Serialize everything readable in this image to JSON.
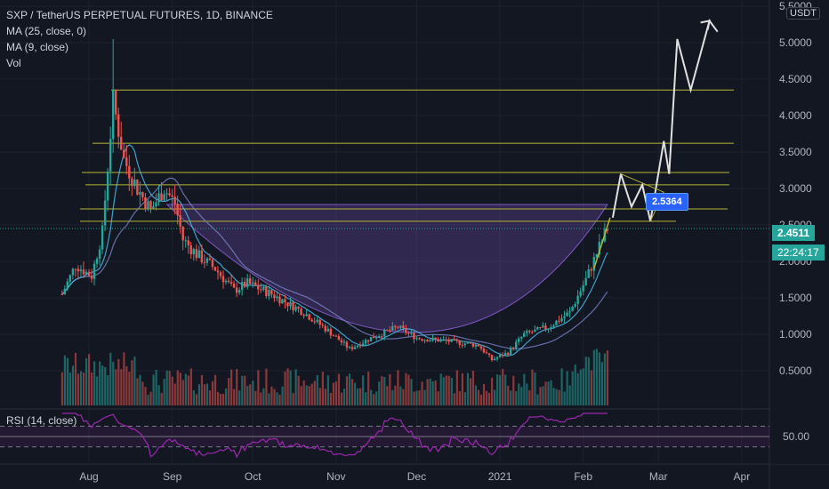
{
  "title": "SXP / TetherUS PERPETUAL FUTURES, 1D, BINANCE",
  "indicators": [
    "MA (25, close, 0)",
    "MA (9, close)",
    "Vol"
  ],
  "rsi_label": "RSI (14, close)",
  "unit": "USDT",
  "last_price": "2.4511",
  "countdown": "22:24:17",
  "annotation_label": "2.5364",
  "colors": {
    "bg": "#131722",
    "up": "#26a69a",
    "down": "#ef5350",
    "level": "#b5b536",
    "bowl": "#7e57c2",
    "rsi": "#9c27b0",
    "path": "#e0e0e0",
    "ma25": "#7986cb",
    "ma9": "#4fc3f7"
  },
  "chart_data": {
    "type": "candlestick",
    "symbol": "SXP/USDT",
    "timeframe": "1D",
    "x_ticks": [
      "Aug",
      "Sep",
      "Oct",
      "Nov",
      "Dec",
      "2021",
      "Feb",
      "Mar",
      "Apr"
    ],
    "y_ticks": [
      0.5,
      1.0,
      1.5,
      2.0,
      2.5,
      3.0,
      3.5,
      4.0,
      4.5,
      5.0,
      5.5
    ],
    "y_tick_labels": [
      "0.5000",
      "1.0000",
      "1.5000",
      "2.0000",
      "2.5000",
      "3.0000",
      "3.5000",
      "4.0000",
      "4.5000",
      "5.0000",
      "5.5000"
    ],
    "y_range": [
      0.2,
      5.55
    ],
    "price_anchors": [
      [
        "2020-07-22",
        1.55
      ],
      [
        "2020-07-27",
        1.95
      ],
      [
        "2020-08-02",
        1.8
      ],
      [
        "2020-08-06",
        2.4
      ],
      [
        "2020-08-10",
        4.2
      ],
      [
        "2020-08-14",
        3.4
      ],
      [
        "2020-08-19",
        3.0
      ],
      [
        "2020-08-24",
        2.7
      ],
      [
        "2020-08-29",
        3.0
      ],
      [
        "2020-09-02",
        2.8
      ],
      [
        "2020-09-05",
        2.3
      ],
      [
        "2020-09-10",
        2.1
      ],
      [
        "2020-09-17",
        1.9
      ],
      [
        "2020-09-24",
        1.6
      ],
      [
        "2020-09-29",
        1.7
      ],
      [
        "2020-10-08",
        1.55
      ],
      [
        "2020-10-20",
        1.3
      ],
      [
        "2020-10-29",
        1.05
      ],
      [
        "2020-11-06",
        0.8
      ],
      [
        "2020-11-14",
        0.95
      ],
      [
        "2020-11-24",
        1.1
      ],
      [
        "2020-12-01",
        0.95
      ],
      [
        "2020-12-14",
        0.9
      ],
      [
        "2020-12-24",
        0.85
      ],
      [
        "2020-12-29",
        0.65
      ],
      [
        "2021-01-04",
        0.75
      ],
      [
        "2021-01-10",
        1.0
      ],
      [
        "2021-01-19",
        1.1
      ],
      [
        "2021-01-27",
        1.3
      ],
      [
        "2021-02-02",
        1.75
      ],
      [
        "2021-02-07",
        2.2
      ],
      [
        "2021-02-10",
        2.45
      ]
    ],
    "resistance_levels": [
      4.35,
      3.62,
      3.22,
      3.05,
      2.72,
      2.55
    ],
    "rsi_levels": [
      70,
      50,
      30
    ],
    "rsi_value_label": "50.00",
    "projection_path": [
      [
        "2021-02-12",
        2.6
      ],
      [
        "2021-02-15",
        3.2
      ],
      [
        "2021-02-19",
        2.75
      ],
      [
        "2021-02-23",
        3.05
      ],
      [
        "2021-02-26",
        2.55
      ],
      [
        "2021-03-03",
        3.65
      ],
      [
        "2021-03-05",
        3.2
      ],
      [
        "2021-03-08",
        5.05
      ],
      [
        "2021-03-13",
        4.35
      ],
      [
        "2021-03-20",
        5.3
      ],
      [
        "2021-03-23",
        5.15
      ]
    ]
  }
}
